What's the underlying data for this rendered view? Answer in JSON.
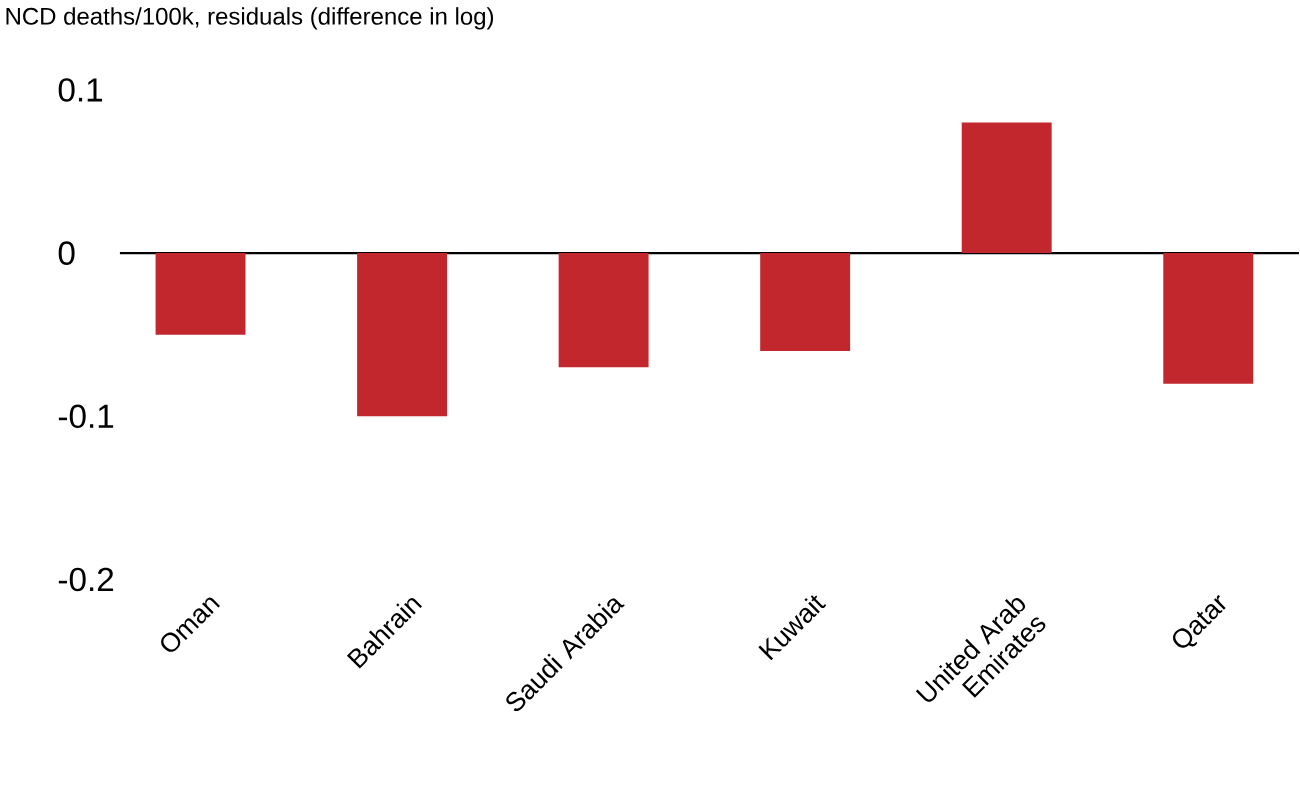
{
  "chart_data": {
    "type": "bar",
    "ylabel": "NCD deaths/100k, residuals (difference in log)",
    "categories": [
      "Oman",
      "Bahrain",
      "Saudi Arabia",
      "Kuwait",
      "United Arab Emirates",
      "Qatar"
    ],
    "values": [
      -0.05,
      -0.1,
      -0.07,
      -0.06,
      0.08,
      -0.08
    ],
    "color": "#c1272d",
    "ylim": [
      -0.2,
      0.1
    ],
    "yticks": [
      -0.2,
      -0.1,
      0,
      0.1
    ],
    "grid": false,
    "ref_lines": [
      {
        "axis": "y",
        "value": 0,
        "color": "#000000"
      }
    ]
  }
}
